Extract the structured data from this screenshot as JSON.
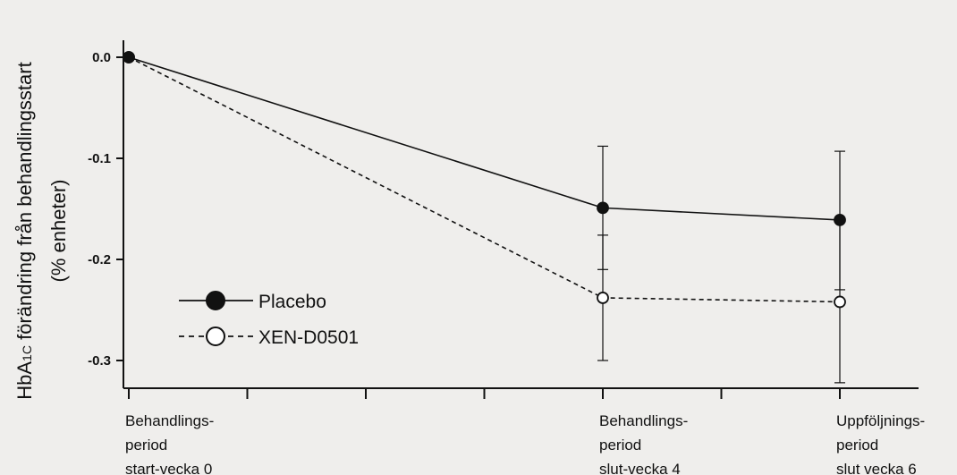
{
  "chart_data": {
    "type": "line",
    "title": "",
    "ylabel_main": "HbA",
    "ylabel_sub": "1C",
    "ylabel_rest": " förändring från behandlingsstart",
    "ylabel_line2": "(% enheter)",
    "ylim": [
      -0.33,
      0.02
    ],
    "yticks": [
      0.0,
      -0.1,
      -0.2,
      -0.3
    ],
    "ytick_labels": [
      "0.0",
      "-0.1",
      "-0.2",
      "-0.3"
    ],
    "xlim": [
      0,
      6.7
    ],
    "xticks": [
      0,
      1,
      2,
      3,
      4,
      5,
      6
    ],
    "categories": [
      {
        "x": 0,
        "lines": [
          "Behandlings-",
          "period",
          "start-vecka 0"
        ]
      },
      {
        "x": 4,
        "lines": [
          "Behandlings-",
          "period",
          "slut-vecka 4"
        ]
      },
      {
        "x": 6,
        "lines": [
          "Uppföljnings-",
          "period",
          "slut vecka 6"
        ]
      }
    ],
    "series": [
      {
        "name": "Placebo",
        "style": "solid",
        "marker": "filled",
        "x": [
          0,
          4,
          6
        ],
        "y": [
          0.0,
          -0.149,
          -0.161
        ],
        "err_low": [
          null,
          -0.21,
          -0.23
        ],
        "err_high": [
          null,
          -0.088,
          -0.093
        ]
      },
      {
        "name": "XEN-D0501",
        "style": "dashed",
        "marker": "open",
        "x": [
          0,
          4,
          6
        ],
        "y": [
          0.0,
          -0.238,
          -0.242
        ],
        "err_low": [
          null,
          -0.3,
          -0.322
        ],
        "err_high": [
          null,
          -0.176,
          -0.162
        ]
      }
    ],
    "legend_position": "lower-left",
    "grid": false
  }
}
